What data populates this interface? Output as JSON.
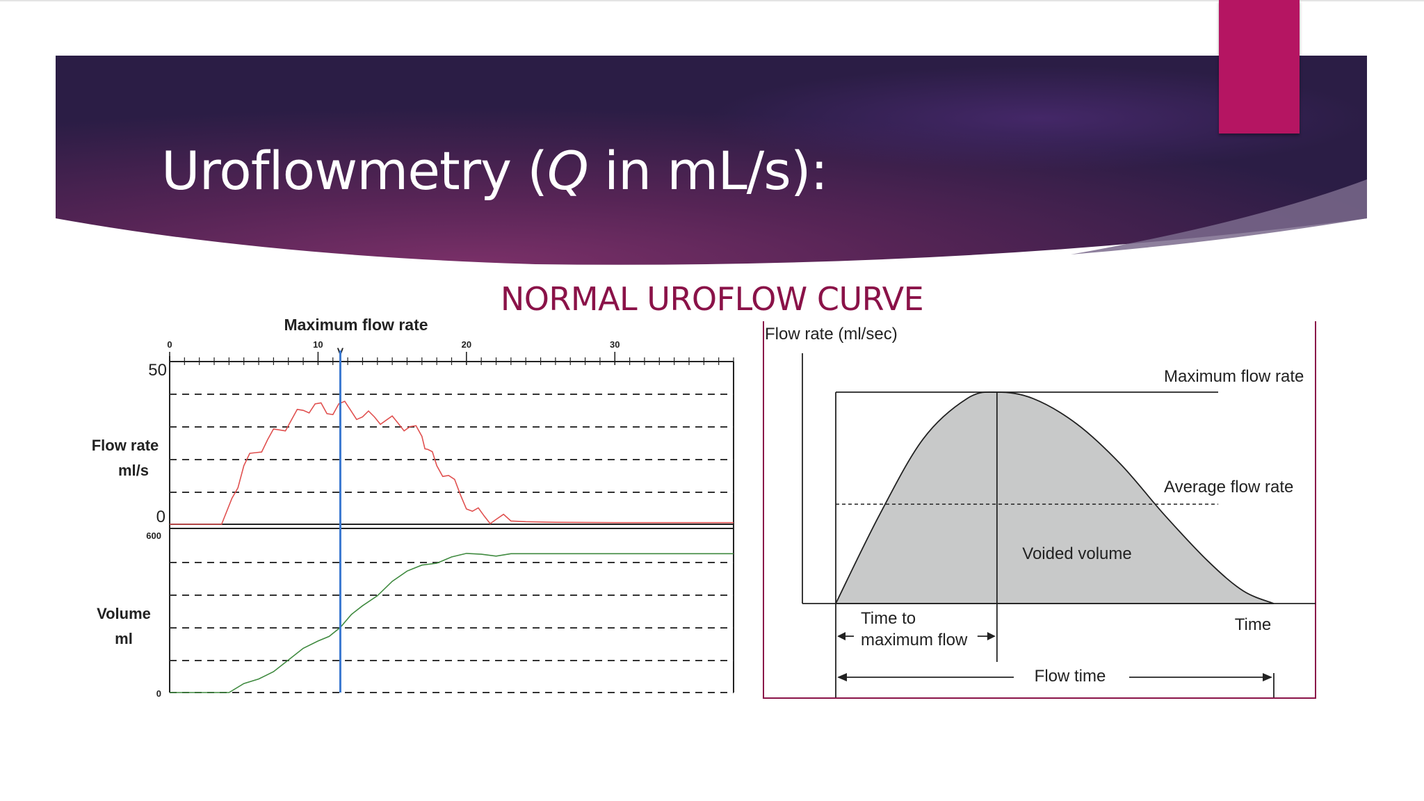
{
  "slide": {
    "title_main": "Uroflowmetry (",
    "title_q": "Q",
    "title_rest": " in mL/s):",
    "heading": "NORMAL UROFLOW CURVE",
    "colors": {
      "banner_dark": "#2b1d45",
      "banner_mid": "#6a2a5e",
      "accent": "#b51562",
      "heading": "#8a1248"
    }
  },
  "chart_data": [
    {
      "type": "line",
      "title": "Maximum flow rate",
      "x_ticks": [
        "0",
        "10",
        "20",
        "30"
      ],
      "xlim": [
        0,
        38
      ],
      "max_marker": {
        "x": 11.5,
        "label": "V"
      },
      "flow_panel": {
        "ylabel_line1": "Flow rate",
        "ylabel_line2": "ml/s",
        "y_tick_top": "50",
        "y_tick_bottom": "0",
        "ylim": [
          0,
          50
        ],
        "series": {
          "color": "#e0504f",
          "x": [
            0,
            3.5,
            4.2,
            5,
            5.8,
            6.6,
            7.4,
            8.2,
            9,
            9.8,
            10.6,
            11.4,
            12.2,
            13,
            13.8,
            14.6,
            15.4,
            16.2,
            17,
            17.4,
            18,
            18.8,
            19.6,
            20.4,
            21.2,
            22,
            23,
            24,
            26,
            30,
            34,
            38
          ],
          "y": [
            0,
            0,
            8,
            18,
            22,
            26,
            29,
            32,
            35,
            37,
            34,
            37,
            35,
            33,
            33,
            32,
            31,
            30,
            27,
            23,
            18,
            15,
            9,
            4,
            2.5,
            1.5,
            1,
            0.8,
            0.6,
            0.5,
            0.5,
            0.5
          ]
        }
      },
      "volume_panel": {
        "ylabel_line1": "Volume",
        "ylabel_line2": "ml",
        "y_tick_top": "600",
        "y_tick_bottom": "0",
        "ylim": [
          0,
          600
        ],
        "series": {
          "color": "#3f8a3f",
          "x": [
            0,
            4,
            6,
            8,
            10,
            11.5,
            13,
            15,
            17,
            19,
            21,
            23,
            26,
            30,
            34,
            38
          ],
          "y": [
            0,
            0,
            50,
            120,
            190,
            240,
            320,
            410,
            470,
            500,
            510,
            512,
            512,
            512,
            512,
            512
          ]
        }
      },
      "grid": true
    },
    {
      "type": "area",
      "ylabel": "Flow rate (ml/sec)",
      "xlabel": "Time",
      "curve": {
        "x": [
          0,
          0.1,
          0.2,
          0.3,
          0.368,
          0.45,
          0.55,
          0.65,
          0.75,
          0.85,
          0.93,
          1.0
        ],
        "y": [
          0,
          0.42,
          0.78,
          0.97,
          1.0,
          0.97,
          0.85,
          0.66,
          0.42,
          0.2,
          0.06,
          0
        ]
      },
      "peak_x": 0.368,
      "average_y": 0.47,
      "labels": {
        "max_flow": "Maximum flow rate",
        "avg_flow": "Average flow rate",
        "voided": "Voided volume",
        "ttm_line1": "Time to",
        "ttm_line2": "maximum flow",
        "time": "Time",
        "flow_time": "Flow time"
      },
      "fill_color": "#c8c9c9",
      "frame_color": "#8a1248"
    }
  ]
}
